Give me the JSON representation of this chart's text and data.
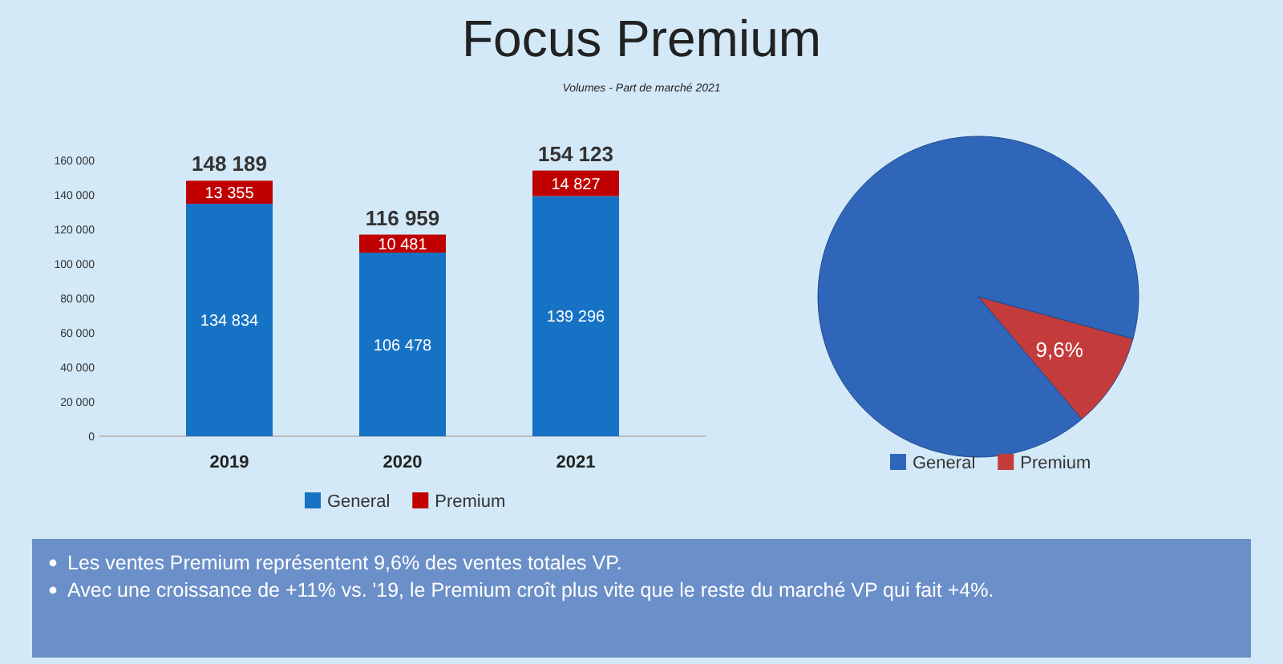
{
  "chart_data": [
    {
      "type": "bar",
      "title": "Focus Premium",
      "subtitle": "Volumes - Part de marché 2021",
      "categories": [
        "2019",
        "2020",
        "2021"
      ],
      "stacked": true,
      "series": [
        {
          "name": "General",
          "color": "#1672c4",
          "values": [
            134834,
            106478,
            139296
          ],
          "value_labels": [
            "134 834",
            "106 478",
            "139 296"
          ]
        },
        {
          "name": "Premium",
          "color": "#c00000",
          "values": [
            13355,
            10481,
            14827
          ],
          "value_labels": [
            "13 355",
            "10 481",
            "14 827"
          ]
        }
      ],
      "totals": [
        "148 189",
        "116 959",
        "154 123"
      ],
      "ylim": [
        0,
        160000
      ],
      "yticks": [
        {
          "value": 0,
          "label": "0"
        },
        {
          "value": 20000,
          "label": "20 000"
        },
        {
          "value": 40000,
          "label": "40 000"
        },
        {
          "value": 60000,
          "label": "60 000"
        },
        {
          "value": 80000,
          "label": "80 000"
        },
        {
          "value": 100000,
          "label": "100 000"
        },
        {
          "value": 120000,
          "label": "120 000"
        },
        {
          "value": 140000,
          "label": "140 000"
        },
        {
          "value": 160000,
          "label": "160 000"
        }
      ],
      "grid": false,
      "legend": "bottom",
      "annotations": [
        "Les ventes Premium représentent 9,6% des ventes totales VP.",
        "Avec une croissance de +11% vs. '19, le Premium croît plus vite que le reste du marché VP qui fait +4%."
      ]
    },
    {
      "type": "pie",
      "categories": [
        "General",
        "Premium"
      ],
      "values": [
        90.4,
        9.6
      ],
      "colors": [
        "#2f66b9",
        "#c33b3b"
      ],
      "value_labels": [
        null,
        "9,6%"
      ],
      "legend": "bottom"
    }
  ]
}
